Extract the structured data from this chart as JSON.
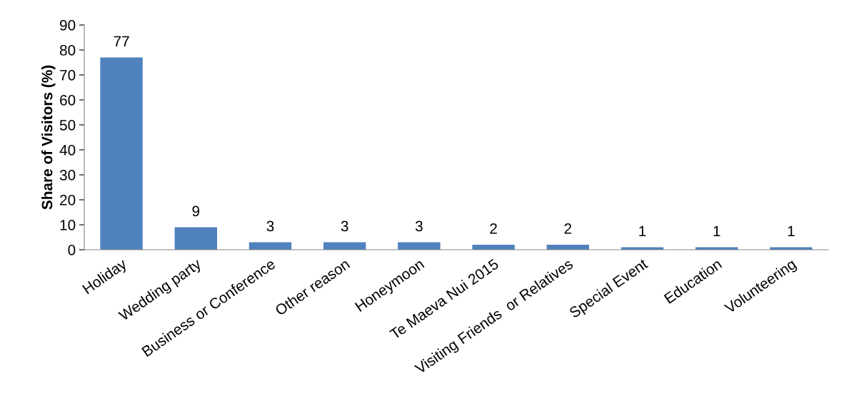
{
  "chart_data": {
    "type": "bar",
    "ylabel": "Share of Visitors (%)",
    "categories": [
      "Holiday",
      "Wedding party",
      "Business or Conference",
      "Other reason",
      "Honeymoon",
      "Te Maeva Nui 2015",
      "Visiting Friends  or Relatives",
      "Special Event",
      "Education",
      "Volunteering"
    ],
    "values": [
      77,
      9,
      3,
      3,
      3,
      2,
      2,
      1,
      1,
      1
    ],
    "color": "#4f81bd",
    "ylim": [
      0,
      90
    ],
    "yticks": [
      0,
      10,
      20,
      30,
      40,
      50,
      60,
      70,
      80,
      90
    ],
    "data_labels": true,
    "grid": false,
    "legend": false
  }
}
